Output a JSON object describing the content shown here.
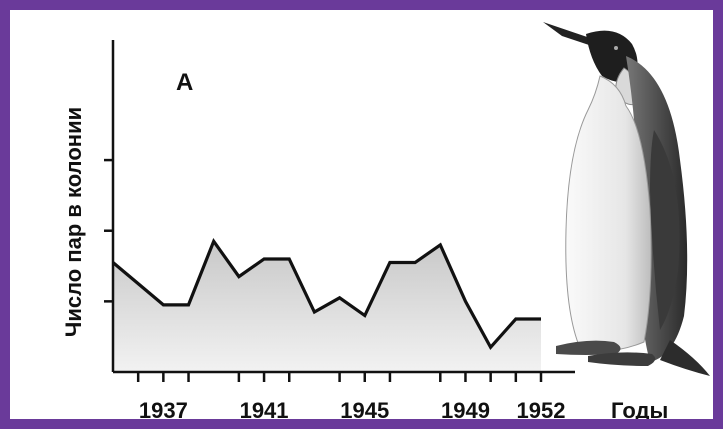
{
  "colors": {
    "frame": "#6a3a9a",
    "background": "#ffffff",
    "line": "#111111",
    "area_top": "#c8c8c8",
    "area_bottom": "#f2f2f2"
  },
  "chart_data": {
    "type": "area",
    "title": "",
    "panel_label": "А",
    "xlabel": "Годы",
    "ylabel": "Число пар в колонии",
    "x_ticks": [
      "1937",
      "1941",
      "1945",
      "1949",
      "1952"
    ],
    "x": [
      1935,
      1937,
      1938,
      1939,
      1940,
      1941,
      1942,
      1943,
      1944,
      1945,
      1946,
      1947,
      1948,
      1949,
      1950,
      1951,
      1952
    ],
    "values": [
      1.55,
      0.95,
      0.95,
      1.85,
      1.35,
      1.6,
      1.6,
      0.85,
      1.05,
      0.8,
      1.55,
      1.55,
      1.8,
      1.0,
      0.35,
      0.75,
      0.75
    ],
    "x_extra_ticks": [
      1936,
      1938,
      1940,
      1942,
      1944,
      1946,
      1948,
      1950,
      1951
    ],
    "ylim": [
      0,
      4.7
    ],
    "y_ticks": [
      1,
      2,
      3
    ],
    "grid": false,
    "legend": "none",
    "illustration": "emperor-penguin"
  }
}
